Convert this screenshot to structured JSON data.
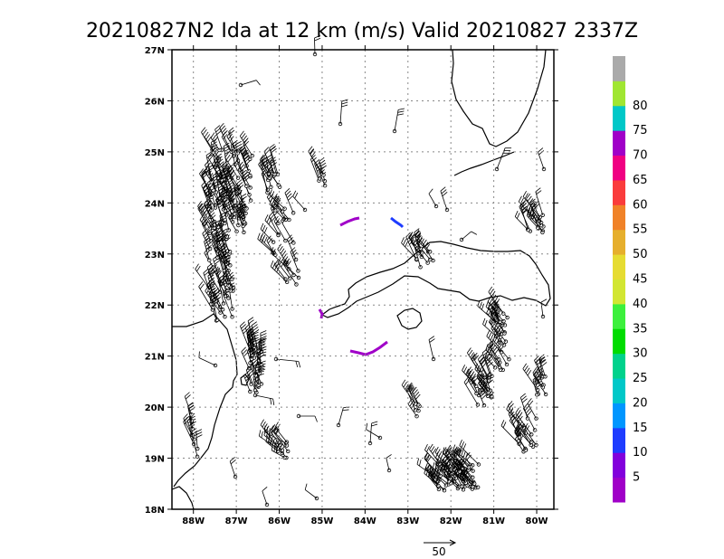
{
  "title": "20210827N2 Ida at 12 km (m/s) Valid 20210827 2337Z",
  "map": {
    "lat_range": [
      18,
      27
    ],
    "lon_range": [
      -88.5,
      -79.6
    ],
    "lat_labels": [
      "27N",
      "26N",
      "25N",
      "24N",
      "23N",
      "22N",
      "21N",
      "20N",
      "19N",
      "18N"
    ],
    "lon_labels": [
      "88W",
      "87W",
      "86W",
      "85W",
      "84W",
      "83W",
      "82W",
      "81W",
      "80W"
    ],
    "grid": "dotted"
  },
  "colorbar": {
    "labels": [
      "5",
      "10",
      "15",
      "20",
      "25",
      "30",
      "35",
      "40",
      "45",
      "50",
      "55",
      "60",
      "65",
      "70",
      "75",
      "80"
    ],
    "colors": [
      "#a000c8",
      "#8200dc",
      "#1e3cff",
      "#0096ff",
      "#00c8c8",
      "#00d28c",
      "#00dc00",
      "#3cf03c",
      "#d2e632",
      "#e6dc32",
      "#e6af2d",
      "#f08228",
      "#fa3c3c",
      "#f00082",
      "#a000c8",
      "#00c8c8",
      "#a0e632",
      "#aaaaaa"
    ]
  },
  "reference_vector": {
    "label": "50"
  }
}
